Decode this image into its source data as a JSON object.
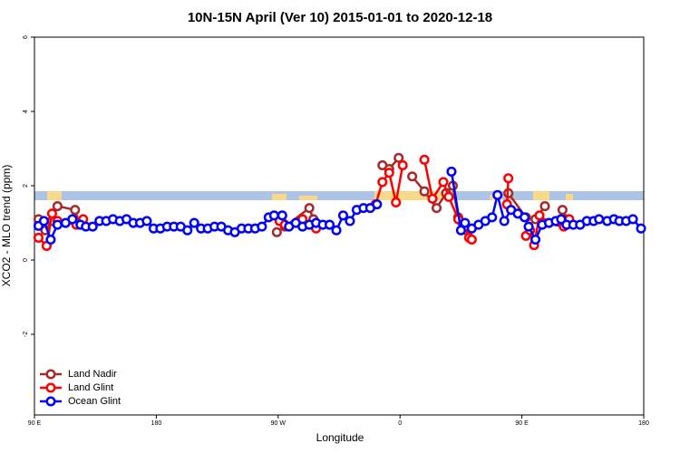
{
  "chart_data": {
    "type": "line",
    "title": "10N-15N April (Ver 10)   2015-01-01 to 2020-12-18",
    "x_label": "Longitude",
    "y_label": "XCO2 - MLO trend (ppm)",
    "xlim": [
      90,
      540
    ],
    "xticks": [
      {
        "value": 90,
        "label": "90 E"
      },
      {
        "value": 180,
        "label": "180"
      },
      {
        "value": 270,
        "label": "90 W"
      },
      {
        "value": 360,
        "label": "0"
      },
      {
        "value": 450,
        "label": "90 E"
      },
      {
        "value": 540,
        "label": "180"
      }
    ],
    "ylim": [
      -4.17,
      6
    ],
    "yticks": [
      -2,
      0,
      2,
      4,
      6
    ],
    "legend": "bottom-left",
    "series": [
      {
        "name": "Land Nadir",
        "color": "#a52a2a",
        "x": [
          93,
          98,
          103,
          107,
          120,
          123,
          200,
          269,
          275,
          293,
          296,
          320,
          347,
          352,
          359,
          362,
          369,
          378,
          387,
          394,
          399,
          403,
          406,
          409,
          425,
          440,
          453,
          460,
          467,
          475,
          480,
          483
        ],
        "values": [
          1.1,
          0.8,
          1.05,
          1.45,
          1.35,
          1.0,
          null,
          0.75,
          0.9,
          1.4,
          1.1,
          null,
          2.55,
          2.45,
          2.75,
          null,
          2.25,
          1.85,
          1.4,
          1.8,
          2.0,
          1.15,
          1.0,
          0.8,
          null,
          1.8,
          1.15,
          1.1,
          1.45,
          null,
          1.35,
          1.1
        ]
      },
      {
        "name": "Land Glint",
        "color": "#ff0000",
        "x": [
          93,
          99,
          103,
          107,
          121,
          126,
          200,
          271,
          275,
          288,
          298,
          320,
          342,
          347,
          352,
          357,
          362,
          370,
          378,
          384,
          392,
          396,
          403,
          408,
          411,
          413,
          425,
          439,
          440,
          447,
          453,
          456,
          459,
          463,
          466,
          481,
          485
        ],
        "values": [
          0.6,
          0.38,
          1.25,
          1.05,
          0.95,
          1.1,
          null,
          1.05,
          0.95,
          1.1,
          0.85,
          null,
          1.5,
          2.1,
          2.35,
          1.55,
          2.55,
          null,
          2.7,
          1.65,
          2.1,
          1.7,
          1.1,
          0.9,
          0.6,
          0.55,
          null,
          1.5,
          2.2,
          null,
          0.65,
          0.8,
          0.4,
          1.2,
          1.0,
          0.9,
          1.1
        ]
      },
      {
        "name": "Ocean Glint",
        "color": "#0000ff",
        "x": [
          93,
          97,
          102,
          107,
          113,
          118,
          124,
          128,
          133,
          138,
          143,
          148,
          153,
          158,
          163,
          168,
          173,
          178,
          183,
          188,
          193,
          198,
          203,
          208,
          213,
          218,
          223,
          228,
          233,
          238,
          243,
          248,
          253,
          258,
          263,
          267,
          273,
          278,
          283,
          288,
          293,
          298,
          303,
          308,
          313,
          318,
          323,
          328,
          333,
          338,
          343,
          370,
          398,
          405,
          408,
          413,
          418,
          423,
          428,
          432,
          437,
          442,
          447,
          452,
          455,
          460,
          465,
          470,
          475,
          479,
          483,
          488,
          493,
          498,
          503,
          507,
          513,
          518,
          522,
          527,
          532,
          538
        ],
        "values": [
          0.92,
          1.05,
          0.55,
          0.95,
          1.0,
          1.1,
          0.95,
          0.9,
          0.9,
          1.05,
          1.05,
          1.1,
          1.05,
          1.1,
          1.0,
          1.0,
          1.05,
          0.85,
          0.85,
          0.9,
          0.9,
          0.9,
          0.8,
          1.0,
          0.85,
          0.85,
          0.9,
          0.9,
          0.8,
          0.75,
          0.85,
          0.85,
          0.85,
          0.9,
          1.15,
          1.2,
          1.2,
          0.9,
          1.0,
          0.9,
          0.95,
          1.0,
          0.95,
          0.95,
          0.8,
          1.2,
          1.05,
          1.35,
          1.4,
          1.4,
          1.5,
          null,
          2.38,
          0.8,
          1.0,
          0.85,
          0.95,
          1.05,
          1.15,
          1.75,
          1.05,
          1.35,
          1.25,
          1.15,
          0.9,
          0.55,
          0.95,
          1.0,
          1.05,
          1.1,
          0.95,
          0.95,
          0.95,
          1.05,
          1.05,
          1.1,
          1.05,
          1.1,
          1.05,
          1.05,
          1.1,
          0.85
        ]
      }
    ]
  }
}
